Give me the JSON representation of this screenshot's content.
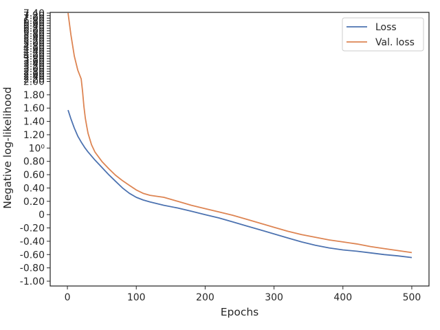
{
  "chart_data": {
    "type": "line",
    "xlabel": "Epochs",
    "ylabel": "Negative log-likelihood",
    "xlim": [
      -25,
      525
    ],
    "xticks": [
      0,
      100,
      200,
      300,
      400,
      500
    ],
    "xtick_labels": [
      "0",
      "100",
      "200",
      "300",
      "400",
      "500"
    ],
    "yticks": [
      -1.0,
      -0.8,
      -0.6,
      -0.4,
      -0.2,
      0,
      0.2,
      0.4,
      0.6,
      0.8,
      1.0,
      1.2,
      1.4,
      1.6,
      1.8,
      2.0,
      2.2,
      2.4,
      2.6,
      2.8,
      3.0,
      3.2,
      3.4,
      3.6,
      3.8,
      4.0,
      4.2,
      4.4,
      4.6,
      4.8,
      5.0,
      5.2,
      5.4,
      5.6,
      5.8,
      6.0,
      6.2,
      6.4,
      6.6,
      6.8,
      7.0,
      7.2,
      7.4
    ],
    "ytick_labels": [
      "-1.00",
      "-0.80",
      "-0.60",
      "-0.40",
      "-0.20",
      "0",
      "0.20",
      "0.40",
      "0.60",
      "0.80",
      "10⁰",
      "1.20",
      "1.40",
      "1.60",
      "1.80",
      "2.00",
      "2.20",
      "2.40",
      "2.60",
      "2.80",
      "3.00",
      "3.20",
      "3.40",
      "3.60",
      "3.80",
      "4.00",
      "4.20",
      "4.40",
      "4.60",
      "4.80",
      "5.00",
      "5.20",
      "5.40",
      "5.60",
      "5.80",
      "6.00",
      "6.20",
      "6.40",
      "6.60",
      "6.80",
      "7.00",
      "7.20",
      "7.40"
    ],
    "legend_position": "top-right",
    "grid": false,
    "series": [
      {
        "name": "Loss",
        "color": "#4c72b0",
        "x": [
          1,
          5,
          10,
          15,
          20,
          25,
          30,
          40,
          50,
          60,
          70,
          80,
          90,
          100,
          110,
          120,
          140,
          160,
          180,
          200,
          220,
          240,
          260,
          280,
          300,
          320,
          340,
          360,
          380,
          400,
          420,
          440,
          460,
          480,
          500
        ],
        "y": [
          1.57,
          1.44,
          1.3,
          1.18,
          1.09,
          1.01,
          0.94,
          0.82,
          0.71,
          0.6,
          0.5,
          0.4,
          0.32,
          0.26,
          0.22,
          0.19,
          0.14,
          0.1,
          0.05,
          0.0,
          -0.05,
          -0.11,
          -0.17,
          -0.23,
          -0.29,
          -0.35,
          -0.41,
          -0.46,
          -0.5,
          -0.53,
          -0.55,
          -0.575,
          -0.6,
          -0.62,
          -0.645
        ]
      },
      {
        "name": "Val. loss",
        "color": "#dd8452",
        "x": [
          1,
          5,
          10,
          15,
          20,
          22,
          24,
          26,
          28,
          30,
          35,
          40,
          50,
          60,
          70,
          80,
          90,
          100,
          110,
          120,
          140,
          160,
          180,
          200,
          220,
          240,
          260,
          280,
          300,
          320,
          340,
          360,
          380,
          400,
          420,
          440,
          460,
          480,
          500
        ],
        "y": [
          7.4,
          5.7,
          4.0,
          2.9,
          2.2,
          1.85,
          1.62,
          1.45,
          1.33,
          1.22,
          1.05,
          0.94,
          0.8,
          0.69,
          0.59,
          0.51,
          0.44,
          0.37,
          0.32,
          0.29,
          0.26,
          0.2,
          0.14,
          0.09,
          0.04,
          -0.01,
          -0.07,
          -0.13,
          -0.19,
          -0.25,
          -0.3,
          -0.34,
          -0.38,
          -0.41,
          -0.44,
          -0.48,
          -0.51,
          -0.54,
          -0.57
        ]
      }
    ]
  }
}
